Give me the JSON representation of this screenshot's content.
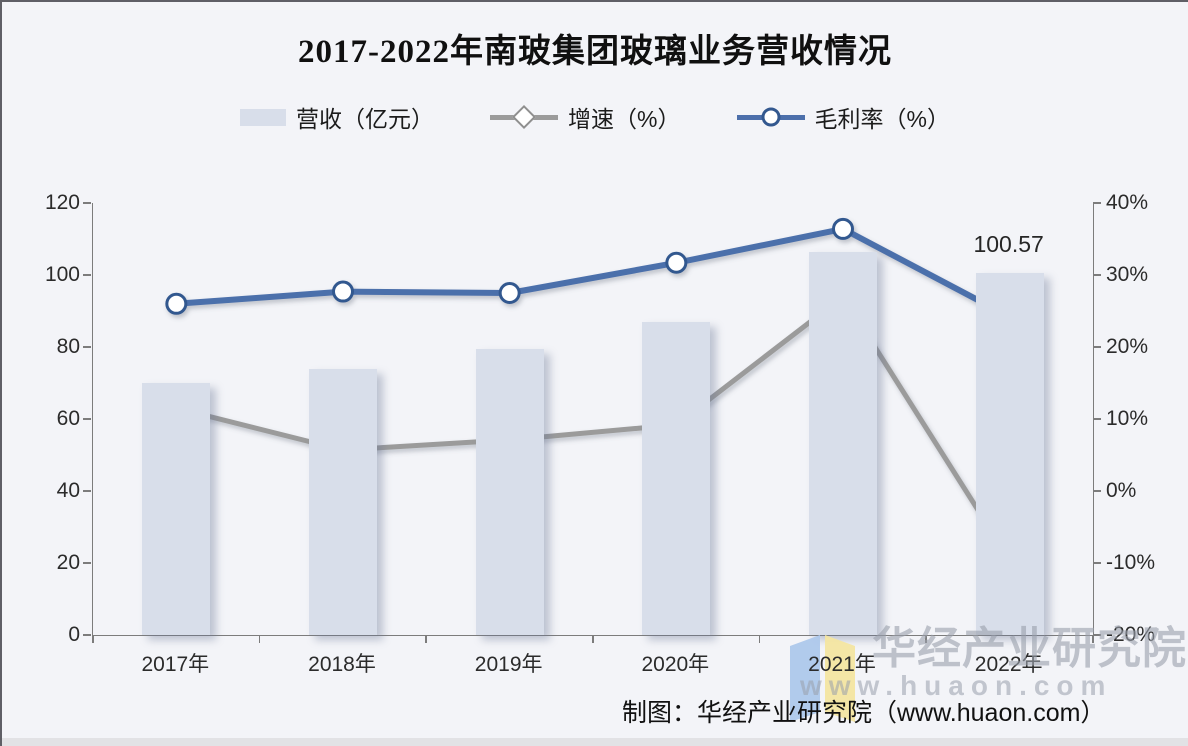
{
  "title": "2017-2022年南玻集团玻璃业务营收情况",
  "legend": [
    {
      "label": "营收（亿元）"
    },
    {
      "label": "增速（%）"
    },
    {
      "label": "毛利率（%）"
    }
  ],
  "watermark": {
    "name": "华经产业研究院",
    "url": "www.huaon.com",
    "logo_blue": "#aec9ec",
    "logo_yellow": "#f5e6a2"
  },
  "credit": "制图：华经产业研究院（www.huaon.com）",
  "chart_data": {
    "type": "bar",
    "title": "2017-2022年南玻集团玻璃业务营收情况",
    "categories": [
      "2017年",
      "2018年",
      "2019年",
      "2020年",
      "2021年",
      "2022年"
    ],
    "series": [
      {
        "name": "营收（亿元）",
        "type": "bar",
        "axis": "left",
        "values": [
          70,
          74,
          79.5,
          87,
          106.5,
          100.57
        ],
        "color": "#d8deea"
      },
      {
        "name": "增速（%）",
        "type": "line",
        "marker": "diamond",
        "axis": "right",
        "values": [
          11.5,
          5.7,
          7.1,
          9.2,
          27,
          -9.6
        ],
        "color": "#9b9b9b",
        "marker_stroke": "#8f8f8f"
      },
      {
        "name": "毛利率（%）",
        "type": "line",
        "marker": "circle",
        "axis": "right",
        "values": [
          26,
          27.7,
          27.5,
          31.7,
          36.4,
          24.2
        ],
        "color": "#4c6fab",
        "marker_stroke": "#33588f"
      }
    ],
    "left_axis": {
      "min": 0,
      "max": 120,
      "step": 20,
      "ticks": [
        "0",
        "20",
        "40",
        "60",
        "80",
        "100",
        "120"
      ]
    },
    "right_axis": {
      "min": -20,
      "max": 40,
      "step": 10,
      "ticks": [
        "-20%",
        "-10%",
        "0%",
        "10%",
        "20%",
        "30%",
        "40%"
      ]
    },
    "annotations": [
      {
        "text": "100.57",
        "category_index": 5,
        "anchor_value": 100.57
      }
    ],
    "grid": false,
    "legend_position": "top"
  }
}
